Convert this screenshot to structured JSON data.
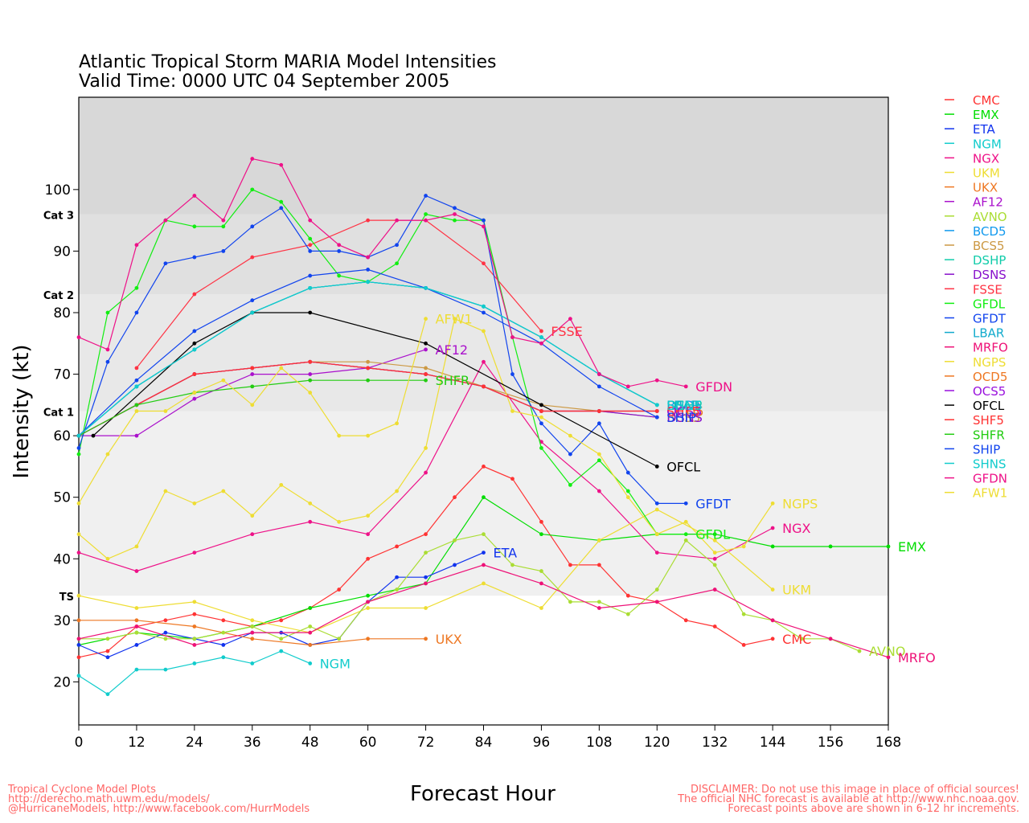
{
  "chart_data": {
    "type": "line",
    "title": "Atlantic Tropical Storm MARIA Model Intensities",
    "subtitle": "Valid Time: 0000 UTC 04 September 2005",
    "xlabel": "Forecast Hour",
    "ylabel": "Intensity (kt)",
    "xlim": [
      0,
      168
    ],
    "ylim": [
      13,
      115
    ],
    "x_ticks": [
      0,
      12,
      24,
      36,
      48,
      60,
      72,
      84,
      96,
      108,
      120,
      132,
      144,
      156,
      168
    ],
    "y_ticks": [
      20,
      30,
      40,
      50,
      60,
      70,
      80,
      90,
      100
    ],
    "legend_position": "right",
    "bands": [
      {
        "label": "TS",
        "from": 34,
        "to": 64,
        "color": "#f0f0f0"
      },
      {
        "label": "Cat 1",
        "from": 64,
        "to": 83,
        "color": "#e8e8e8"
      },
      {
        "label": "Cat 2",
        "from": 83,
        "to": 96,
        "color": "#e0e0e0"
      },
      {
        "label": "Cat 3",
        "from": 96,
        "to": 115,
        "color": "#d8d8d8"
      }
    ],
    "series": [
      {
        "name": "CMC",
        "color": "#ff3333",
        "x": [
          0,
          6,
          12,
          18,
          24,
          30,
          36,
          42,
          48,
          54,
          60,
          66,
          72,
          78,
          84,
          90,
          96,
          102,
          108,
          114,
          120,
          126,
          132,
          138,
          144
        ],
        "values": [
          24,
          25,
          29,
          30,
          31,
          30,
          29,
          30,
          32,
          35,
          40,
          42,
          44,
          50,
          55,
          53,
          46,
          39,
          39,
          34,
          33,
          30,
          29,
          26,
          27
        ]
      },
      {
        "name": "EMX",
        "color": "#00dd00",
        "x": [
          0,
          12,
          24,
          36,
          48,
          60,
          72,
          84,
          96,
          108,
          120,
          132,
          144,
          156,
          168
        ],
        "values": [
          26,
          28,
          27,
          29,
          32,
          34,
          36,
          50,
          44,
          43,
          44,
          44,
          42,
          42,
          42
        ]
      },
      {
        "name": "ETA",
        "color": "#1133ee",
        "x": [
          0,
          6,
          12,
          18,
          24,
          30,
          36,
          42,
          48,
          54,
          60,
          66,
          72,
          78,
          84
        ],
        "values": [
          26,
          24,
          26,
          28,
          27,
          26,
          28,
          28,
          26,
          27,
          33,
          37,
          37,
          39,
          41
        ]
      },
      {
        "name": "NGM",
        "color": "#11cccc",
        "x": [
          0,
          6,
          12,
          18,
          24,
          30,
          36,
          42,
          48
        ],
        "values": [
          21,
          18,
          22,
          22,
          23,
          24,
          23,
          25,
          23
        ]
      },
      {
        "name": "NGX",
        "color": "#ee1188",
        "x": [
          0,
          12,
          24,
          36,
          48,
          60,
          72,
          84,
          96,
          108,
          120,
          132,
          144
        ],
        "values": [
          41,
          38,
          41,
          44,
          46,
          44,
          54,
          72,
          59,
          51,
          41,
          40,
          45
        ]
      },
      {
        "name": "UKM",
        "color": "#eedd33",
        "x": [
          0,
          12,
          24,
          36,
          48,
          60,
          72,
          84,
          96,
          108,
          120,
          132,
          144
        ],
        "values": [
          34,
          32,
          33,
          30,
          28,
          32,
          32,
          36,
          32,
          43,
          48,
          43,
          35
        ]
      },
      {
        "name": "UKX",
        "color": "#ee7722",
        "x": [
          0,
          12,
          24,
          36,
          48,
          60,
          72
        ],
        "values": [
          30,
          30,
          29,
          27,
          26,
          27,
          27
        ]
      },
      {
        "name": "AF12",
        "color": "#aa11cc",
        "x": [
          0,
          12,
          24,
          36,
          48,
          60,
          72
        ],
        "values": [
          60,
          60,
          66,
          70,
          70,
          71,
          74
        ]
      },
      {
        "name": "AVNO",
        "color": "#aadd33",
        "x": [
          0,
          6,
          12,
          18,
          24,
          30,
          36,
          42,
          48,
          54,
          60,
          66,
          72,
          78,
          84,
          90,
          96,
          102,
          108,
          114,
          120,
          126,
          132,
          138,
          144,
          150,
          156,
          162
        ],
        "values": [
          27,
          27,
          28,
          27,
          27,
          28,
          29,
          27,
          29,
          27,
          33,
          35,
          41,
          43,
          44,
          39,
          38,
          33,
          33,
          31,
          35,
          43,
          39,
          31,
          30,
          27,
          27,
          25
        ]
      },
      {
        "name": "BCD5",
        "color": "#1199ee",
        "x": [
          0,
          12,
          24,
          36,
          48,
          60,
          72,
          84,
          96,
          108,
          120
        ],
        "values": [
          60,
          68,
          74,
          80,
          84,
          85,
          84,
          81,
          76,
          70,
          65
        ]
      },
      {
        "name": "BCS5",
        "color": "#cc9944",
        "x": [
          0,
          12,
          24,
          36,
          48,
          60,
          72,
          84,
          96,
          108,
          120
        ],
        "values": [
          60,
          65,
          70,
          71,
          72,
          72,
          71,
          68,
          65,
          64,
          63
        ]
      },
      {
        "name": "DSHP",
        "color": "#11ccaa",
        "x": [
          0,
          12,
          24,
          36,
          48,
          60,
          72,
          84,
          96,
          108,
          120
        ],
        "values": [
          60,
          68,
          74,
          80,
          84,
          85,
          84,
          81,
          76,
          70,
          65
        ]
      },
      {
        "name": "DSNS",
        "color": "#8811cc",
        "x": [
          0,
          12,
          24,
          36,
          48,
          60,
          72,
          84,
          96,
          108,
          120
        ],
        "values": [
          60,
          65,
          70,
          71,
          72,
          71,
          70,
          68,
          64,
          64,
          63
        ]
      },
      {
        "name": "FSSE",
        "color": "#ff3344",
        "x": [
          12,
          24,
          36,
          48,
          60,
          72,
          84,
          96
        ],
        "values": [
          71,
          83,
          89,
          91,
          95,
          95,
          88,
          77
        ]
      },
      {
        "name": "GFDL",
        "color": "#11ee11",
        "x": [
          0,
          6,
          12,
          18,
          24,
          30,
          36,
          42,
          48,
          54,
          60,
          66,
          72,
          78,
          84,
          90,
          96,
          102,
          108,
          114,
          120,
          126
        ],
        "values": [
          57,
          80,
          84,
          95,
          94,
          94,
          100,
          98,
          92,
          86,
          85,
          88,
          96,
          95,
          95,
          76,
          58,
          52,
          56,
          51,
          44,
          44
        ]
      },
      {
        "name": "GFDT",
        "color": "#1144ee",
        "x": [
          0,
          6,
          12,
          18,
          24,
          30,
          36,
          42,
          48,
          54,
          60,
          66,
          72,
          78,
          84,
          90,
          96,
          102,
          108,
          114,
          120,
          126
        ],
        "values": [
          58,
          72,
          80,
          88,
          89,
          90,
          94,
          97,
          90,
          90,
          89,
          91,
          99,
          97,
          95,
          70,
          62,
          57,
          62,
          54,
          49,
          49
        ]
      },
      {
        "name": "LBAR",
        "color": "#11aacc",
        "x": [
          0,
          12,
          24,
          36,
          48,
          60,
          72,
          84,
          96,
          108,
          120
        ],
        "values": [
          60,
          68,
          74,
          80,
          84,
          85,
          84,
          81,
          76,
          70,
          65
        ]
      },
      {
        "name": "MRFO",
        "color": "#ee1177",
        "x": [
          0,
          12,
          24,
          36,
          48,
          60,
          72,
          84,
          96,
          108,
          120,
          132,
          144,
          156,
          168
        ],
        "values": [
          27,
          29,
          26,
          28,
          28,
          33,
          36,
          39,
          36,
          32,
          33,
          35,
          30,
          27,
          24
        ]
      },
      {
        "name": "NGPS",
        "color": "#eedd33",
        "x": [
          0,
          6,
          12,
          18,
          24,
          30,
          36,
          42,
          48,
          54,
          60,
          66,
          72,
          78,
          84,
          90,
          96,
          102,
          108,
          114,
          120,
          126,
          132,
          138,
          144
        ],
        "values": [
          44,
          40,
          42,
          51,
          49,
          51,
          47,
          52,
          49,
          46,
          47,
          51,
          58,
          79,
          77,
          64,
          63,
          60,
          57,
          50,
          44,
          46,
          41,
          42,
          49
        ]
      },
      {
        "name": "OCD5",
        "color": "#ee7722",
        "x": [
          0,
          12,
          24,
          36,
          48,
          60,
          72,
          84,
          96,
          108,
          120
        ],
        "values": [
          60,
          65,
          70,
          71,
          72,
          71,
          70,
          68,
          64,
          64,
          64
        ]
      },
      {
        "name": "OCS5",
        "color": "#9911dd",
        "x": [
          0,
          12,
          24,
          36,
          48,
          60,
          72,
          84,
          96,
          108,
          120
        ],
        "values": [
          60,
          65,
          70,
          71,
          72,
          71,
          70,
          68,
          64,
          64,
          64
        ]
      },
      {
        "name": "OFCL",
        "color": "#000000",
        "x": [
          3,
          24,
          36,
          48,
          72,
          96,
          120
        ],
        "values": [
          60,
          75,
          80,
          80,
          75,
          65,
          55
        ]
      },
      {
        "name": "SHF5",
        "color": "#ff3333",
        "x": [
          0,
          12,
          24,
          36,
          48,
          60,
          72,
          84,
          96,
          108,
          120
        ],
        "values": [
          60,
          65,
          70,
          71,
          72,
          71,
          70,
          68,
          64,
          64,
          64
        ]
      },
      {
        "name": "SHFR",
        "color": "#22cc11",
        "x": [
          0,
          12,
          24,
          36,
          48,
          60,
          72
        ],
        "values": [
          60,
          65,
          67,
          68,
          69,
          69,
          69
        ]
      },
      {
        "name": "SHIP",
        "color": "#1144ee",
        "x": [
          0,
          12,
          24,
          36,
          48,
          60,
          72,
          84,
          96,
          108,
          120
        ],
        "values": [
          60,
          69,
          77,
          82,
          86,
          87,
          84,
          80,
          75,
          68,
          63
        ]
      },
      {
        "name": "SHNS",
        "color": "#11cccc",
        "x": [
          0,
          12,
          24,
          36,
          48,
          60,
          72,
          84,
          96,
          108,
          120
        ],
        "values": [
          60,
          68,
          74,
          80,
          84,
          85,
          84,
          81,
          76,
          70,
          65
        ]
      },
      {
        "name": "GFDN",
        "color": "#ee1188",
        "x": [
          0,
          6,
          12,
          18,
          24,
          30,
          36,
          42,
          48,
          54,
          60,
          66,
          72,
          78,
          84,
          90,
          96,
          102,
          108,
          114,
          120,
          126
        ],
        "values": [
          76,
          74,
          91,
          95,
          99,
          95,
          105,
          104,
          95,
          91,
          89,
          95,
          95,
          96,
          94,
          76,
          75,
          79,
          70,
          68,
          69,
          68
        ]
      },
      {
        "name": "AFW1",
        "color": "#eedd33",
        "x": [
          0,
          6,
          12,
          18,
          24,
          30,
          36,
          42,
          48,
          54,
          60,
          66,
          72
        ],
        "values": [
          49,
          57,
          64,
          64,
          67,
          69,
          65,
          71,
          67,
          60,
          60,
          62,
          79
        ]
      }
    ],
    "end_labels": [
      {
        "series": "CMC",
        "text": "CMC"
      },
      {
        "series": "EMX",
        "text": "EMX"
      },
      {
        "series": "ETA",
        "text": "ETA"
      },
      {
        "series": "NGM",
        "text": "NGM"
      },
      {
        "series": "NGX",
        "text": "NGX"
      },
      {
        "series": "UKM",
        "text": "UKM"
      },
      {
        "series": "UKX",
        "text": "UKX"
      },
      {
        "series": "AF12",
        "text": "AF12"
      },
      {
        "series": "AVNO",
        "text": "AVNO"
      },
      {
        "series": "BCD5",
        "text": "BCD5"
      },
      {
        "series": "BCS5",
        "text": "BCS5"
      },
      {
        "series": "DSHP",
        "text": "DSHP"
      },
      {
        "series": "DSNS",
        "text": "DSNS"
      },
      {
        "series": "FSSE",
        "text": "FSSE"
      },
      {
        "series": "GFDL",
        "text": "GFDL"
      },
      {
        "series": "GFDT",
        "text": "GFDT"
      },
      {
        "series": "LBAR",
        "text": "LBAR"
      },
      {
        "series": "MRFO",
        "text": "MRFO"
      },
      {
        "series": "NGPS",
        "text": "NGPS"
      },
      {
        "series": "OCD5",
        "text": "OCD5"
      },
      {
        "series": "OCS5",
        "text": "OCS5"
      },
      {
        "series": "OFCL",
        "text": "OFCL"
      },
      {
        "series": "SHF5",
        "text": "SHF5"
      },
      {
        "series": "SHFR",
        "text": "SHFR"
      },
      {
        "series": "SHIP",
        "text": "SHIP"
      },
      {
        "series": "SHNS",
        "text": "SHNS"
      },
      {
        "series": "GFDN",
        "text": "GFDN"
      },
      {
        "series": "AFW1",
        "text": "AFW1"
      }
    ]
  },
  "footer": {
    "left": "Tropical Cyclone Model Plots\nhttp://derecho.math.uwm.edu/models/\n@HurricaneModels, http://www.facebook.com/HurrModels",
    "right": "DISCLAIMER: Do not use this image in place of official sources!\nThe official NHC forecast is available at http://www.nhc.noaa.gov.\nForecast points above are shown in 6-12 hr increments."
  }
}
